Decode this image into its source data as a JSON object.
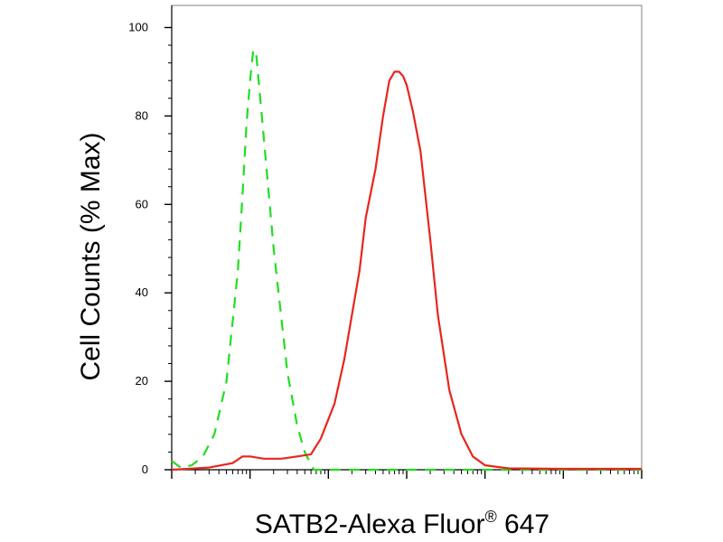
{
  "chart_data": {
    "type": "line",
    "title": "",
    "xlabel": "SATB2-Alexa Fluor",
    "xlabel_superscript": "®",
    "xlabel_suffix": " 647",
    "ylabel": "Cell Counts (% Max)",
    "x_scale": "log",
    "xlim": [
      10,
      10000000
    ],
    "ylim": [
      0,
      105
    ],
    "y_ticks": [
      0,
      20,
      40,
      60,
      80,
      100
    ],
    "y_tick_labels": [
      "0",
      "20",
      "40",
      "60",
      "80",
      "100"
    ],
    "x_tick_labels_shown": false,
    "grid": false,
    "legend": "none",
    "series": [
      {
        "line_style": "dashed",
        "color": "#22dd22",
        "x": [
          10,
          13,
          18,
          25,
          35,
          50,
          70,
          80,
          90,
          100,
          110,
          120,
          150,
          200,
          300,
          400,
          500,
          650,
          1000,
          2000,
          5000,
          20000,
          100000,
          10000000
        ],
        "y": [
          2,
          0.5,
          1,
          3,
          8,
          20,
          45,
          62,
          78,
          88,
          95,
          94,
          75,
          50,
          22,
          10,
          4,
          0,
          0,
          0,
          0,
          0,
          0,
          0
        ]
      },
      {
        "line_style": "solid",
        "color": "#e8261c",
        "x": [
          10,
          30,
          60,
          80,
          100,
          150,
          250,
          400,
          600,
          800,
          1200,
          1600,
          2000,
          2500,
          3000,
          4000,
          5000,
          6000,
          7000,
          8000,
          9000,
          10000,
          12000,
          15000,
          20000,
          25000,
          35000,
          50000,
          70000,
          100000,
          200000,
          1000000,
          10000000
        ],
        "y": [
          0,
          0.5,
          1.5,
          3,
          3,
          2.5,
          2.5,
          3,
          3.5,
          7,
          15,
          25,
          35,
          45,
          57,
          68,
          80,
          88,
          90,
          90,
          89,
          87,
          81,
          72,
          52,
          35,
          18,
          8,
          3,
          1,
          0.3,
          0.2,
          0.2
        ]
      }
    ]
  }
}
